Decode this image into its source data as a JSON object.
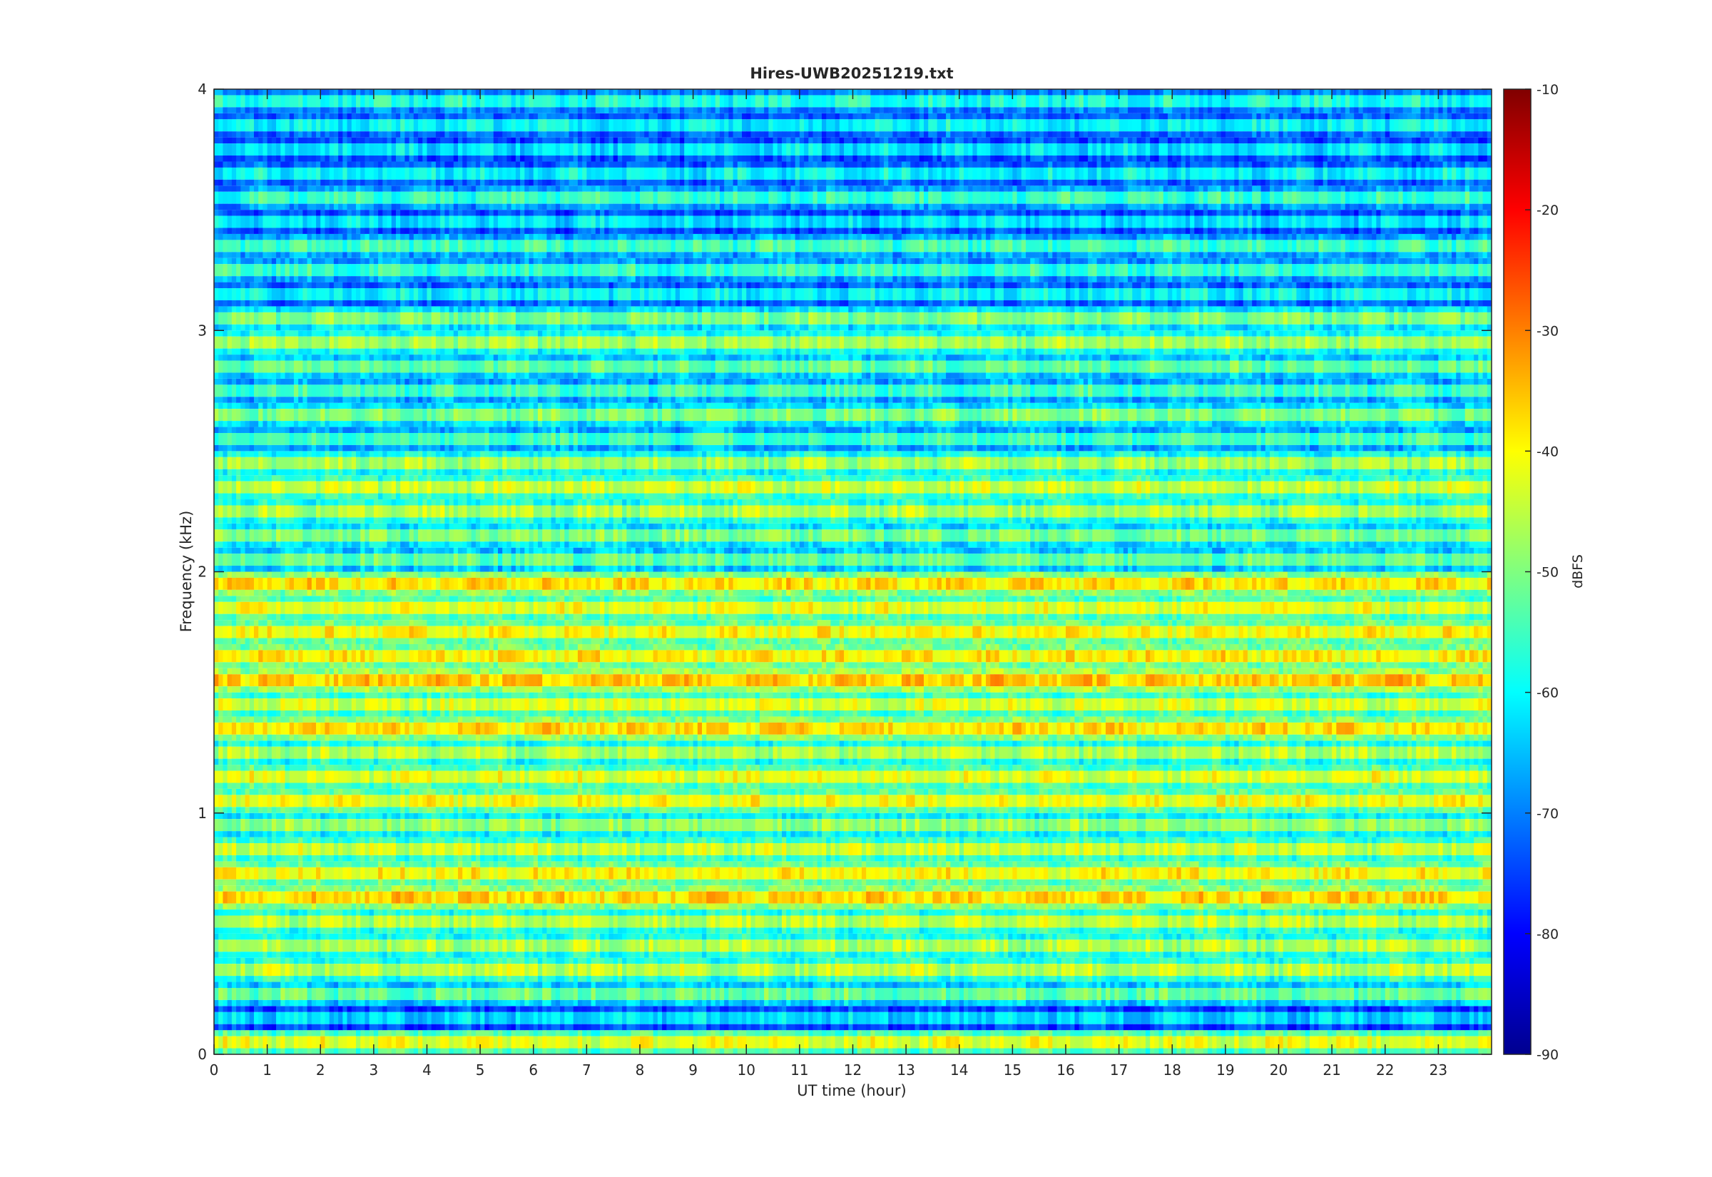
{
  "chart_data": {
    "type": "heatmap",
    "title": "Hires-UWB20251219.txt",
    "xlabel": "UT time (hour)",
    "ylabel": "Frequency (kHz)",
    "xlim": [
      0,
      24
    ],
    "ylim": [
      0,
      4
    ],
    "x_ticks": [
      0,
      1,
      2,
      3,
      4,
      5,
      6,
      7,
      8,
      9,
      10,
      11,
      12,
      13,
      14,
      15,
      16,
      17,
      18,
      19,
      20,
      21,
      22,
      23
    ],
    "y_ticks": [
      0,
      1,
      2,
      3,
      4
    ],
    "colorbar": {
      "label": "dBFS",
      "colormap": "jet",
      "range": [
        -90,
        -10
      ],
      "ticks": [
        -90,
        -80,
        -70,
        -60,
        -50,
        -40,
        -30,
        -20,
        -10
      ]
    },
    "grid": false,
    "band_spacing_khz": 0.1,
    "band_levels_dbfs": [
      {
        "freq_khz": 0.05,
        "level": -42
      },
      {
        "freq_khz": 0.15,
        "level": -63
      },
      {
        "freq_khz": 0.25,
        "level": -52
      },
      {
        "freq_khz": 0.35,
        "level": -45
      },
      {
        "freq_khz": 0.45,
        "level": -46
      },
      {
        "freq_khz": 0.55,
        "level": -45
      },
      {
        "freq_khz": 0.65,
        "level": -37
      },
      {
        "freq_khz": 0.75,
        "level": -40
      },
      {
        "freq_khz": 0.85,
        "level": -44
      },
      {
        "freq_khz": 0.95,
        "level": -48
      },
      {
        "freq_khz": 1.05,
        "level": -41
      },
      {
        "freq_khz": 1.15,
        "level": -42
      },
      {
        "freq_khz": 1.25,
        "level": -46
      },
      {
        "freq_khz": 1.35,
        "level": -38
      },
      {
        "freq_khz": 1.45,
        "level": -43
      },
      {
        "freq_khz": 1.55,
        "level": -36
      },
      {
        "freq_khz": 1.65,
        "level": -39
      },
      {
        "freq_khz": 1.75,
        "level": -40
      },
      {
        "freq_khz": 1.85,
        "level": -42
      },
      {
        "freq_khz": 1.95,
        "level": -38
      },
      {
        "freq_khz": 2.05,
        "level": -52
      },
      {
        "freq_khz": 2.15,
        "level": -50
      },
      {
        "freq_khz": 2.25,
        "level": -46
      },
      {
        "freq_khz": 2.35,
        "level": -44
      },
      {
        "freq_khz": 2.45,
        "level": -47
      },
      {
        "freq_khz": 2.55,
        "level": -55
      },
      {
        "freq_khz": 2.65,
        "level": -50
      },
      {
        "freq_khz": 2.75,
        "level": -55
      },
      {
        "freq_khz": 2.85,
        "level": -52
      },
      {
        "freq_khz": 2.95,
        "level": -47
      },
      {
        "freq_khz": 3.05,
        "level": -50
      },
      {
        "freq_khz": 3.15,
        "level": -60
      },
      {
        "freq_khz": 3.25,
        "level": -56
      },
      {
        "freq_khz": 3.35,
        "level": -55
      },
      {
        "freq_khz": 3.45,
        "level": -62
      },
      {
        "freq_khz": 3.55,
        "level": -56
      },
      {
        "freq_khz": 3.65,
        "level": -60
      },
      {
        "freq_khz": 3.75,
        "level": -62
      },
      {
        "freq_khz": 3.85,
        "level": -60
      },
      {
        "freq_khz": 3.95,
        "level": -58
      }
    ]
  }
}
